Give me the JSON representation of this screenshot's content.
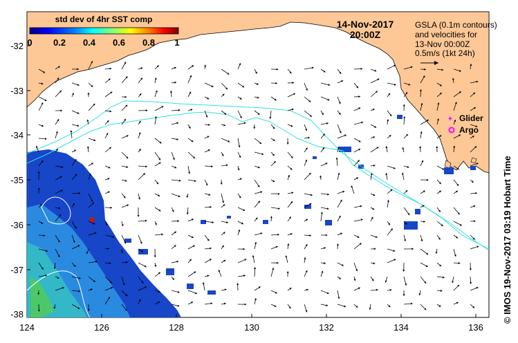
{
  "colorbar": {
    "title": "std dev of 4hr SST comp",
    "ticks": [
      "0",
      "0.2",
      "0.4",
      "0.6",
      "0.8",
      "1"
    ],
    "colors": [
      "#00007f",
      "#0000ff",
      "#007fff",
      "#00ffff",
      "#7fff7f",
      "#ffff00",
      "#ff7f00",
      "#ff0000",
      "#7f0000"
    ]
  },
  "date": {
    "day": "14-Nov-2017",
    "time": "20:00Z"
  },
  "legend": {
    "line1": "GSLA (0.1m contours)",
    "line2": "and velocities for",
    "line3": "13-Nov 00:00Z",
    "line4": "0.5m/s (1kt 24h)"
  },
  "markers": {
    "glider": {
      "label": "Glider",
      "color": "#ff00ff"
    },
    "argo": {
      "label": "Argo",
      "color": "#ff00ff"
    }
  },
  "axes": {
    "x_ticks": [
      "124",
      "126",
      "128",
      "130",
      "132",
      "134",
      "136"
    ],
    "y_ticks": [
      "-32",
      "-33",
      "-34",
      "-35",
      "-36",
      "-37",
      "-38"
    ]
  },
  "credit": "© IMOS 19-Nov-2017 03:19 Hobart Time",
  "colors": {
    "land": "#fdc896",
    "contour": "#33e0e0",
    "sst_blue": "#1846c8"
  }
}
